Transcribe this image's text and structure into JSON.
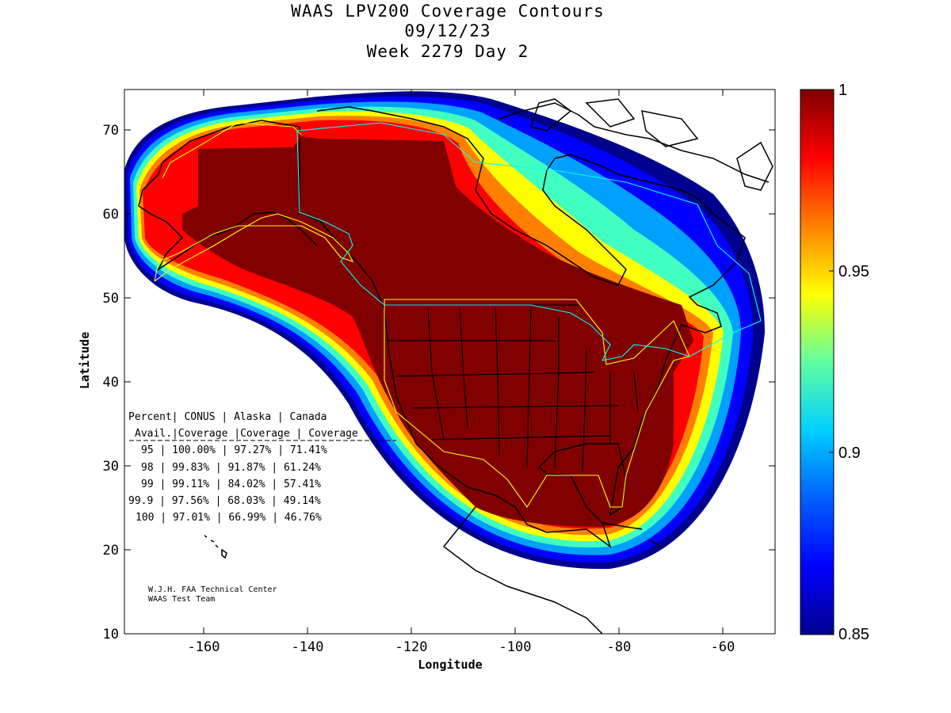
{
  "title": {
    "line1": "WAAS LPV200 Coverage Contours",
    "line2": "09/12/23",
    "line3": "Week 2279 Day 2"
  },
  "axes": {
    "xlabel": "Longitude",
    "ylabel": "Latitude",
    "xlim": [
      -175,
      -50
    ],
    "ylim": [
      10,
      75
    ],
    "xticks": [
      "-160",
      "-140",
      "-120",
      "-100",
      "-80",
      "-60"
    ],
    "yticks": [
      "10",
      "20",
      "30",
      "40",
      "50",
      "60",
      "70"
    ]
  },
  "colorbar": {
    "range": [
      0.85,
      1
    ],
    "ticks": [
      "0.85",
      "0.9",
      "0.95",
      "1"
    ],
    "colormap": "jet",
    "colors": [
      "#00008f",
      "#0000ff",
      "#00a0ff",
      "#00ffff",
      "#80ff80",
      "#ffff00",
      "#ff8000",
      "#ff0000",
      "#800000"
    ]
  },
  "table": {
    "header1": [
      "Percent",
      "CONUS",
      "Alaska",
      "Canada"
    ],
    "header2": [
      "Avail.",
      "Coverage",
      "Coverage",
      "Coverage"
    ],
    "rows": [
      [
        "95",
        "100.00%",
        "97.27%",
        "71.41%"
      ],
      [
        "98",
        "99.83%",
        "91.87%",
        "61.24%"
      ],
      [
        "99",
        "99.11%",
        "84.02%",
        "57.41%"
      ],
      [
        "99.9",
        "97.56%",
        "68.03%",
        "49.14%"
      ],
      [
        "100",
        "97.01%",
        "66.99%",
        "46.76%"
      ]
    ]
  },
  "credit": {
    "line1": "W.J.H. FAA Technical Center",
    "line2": "WAAS Test Team"
  },
  "regions": {
    "conus_color": "#ffff00",
    "canada_color": "#00ffff"
  }
}
